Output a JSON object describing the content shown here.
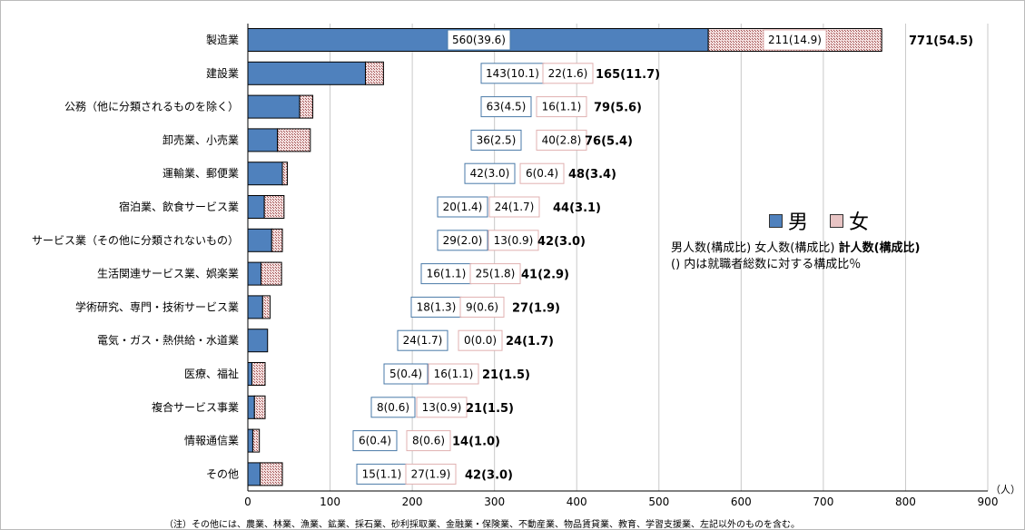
{
  "chart_data": {
    "type": "bar",
    "orientation": "horizontal",
    "stacked": true,
    "categories": [
      "製造業",
      "建設業",
      "公務（他に分類されるものを除く）",
      "卸売業、小売業",
      "運輸業、郵便業",
      "宿泊業、飲食サービス業",
      "サービス業（その他に分類されないもの）",
      "生活関連サービス業、娯楽業",
      "学術研究、専門・技術サービス業",
      "電気・ガス・熱供給・水道業",
      "医療、福祉",
      "複合サービス事業",
      "情報通信業",
      "その他"
    ],
    "series": [
      {
        "name": "男",
        "color": "#4f81bd",
        "values": [
          560,
          143,
          63,
          36,
          42,
          20,
          29,
          16,
          18,
          24,
          5,
          8,
          6,
          15
        ],
        "ratios": [
          "39.6",
          "10.1",
          "4.5",
          "2.5",
          "3.0",
          "1.4",
          "2.0",
          "1.1",
          "1.3",
          "1.7",
          "0.4",
          "0.6",
          "0.4",
          "1.1"
        ]
      },
      {
        "name": "女",
        "color": "#d9a0a0",
        "values": [
          211,
          22,
          16,
          40,
          6,
          24,
          13,
          25,
          9,
          0,
          16,
          13,
          8,
          27
        ],
        "ratios": [
          "14.9",
          "1.6",
          "1.1",
          "2.8",
          "0.4",
          "1.7",
          "0.9",
          "1.8",
          "0.6",
          "0.0",
          "1.1",
          "0.9",
          "0.6",
          "1.9"
        ]
      }
    ],
    "totals": [
      771,
      165,
      79,
      76,
      48,
      44,
      42,
      41,
      27,
      24,
      21,
      21,
      14,
      42
    ],
    "total_ratios": [
      "54.5",
      "11.7",
      "5.6",
      "5.4",
      "3.4",
      "3.1",
      "3.0",
      "2.9",
      "1.9",
      "1.7",
      "1.5",
      "1.5",
      "1.0",
      "3.0"
    ],
    "xlim": [
      0,
      900
    ],
    "xticks": [
      0,
      100,
      200,
      300,
      400,
      500,
      600,
      700,
      800,
      900
    ],
    "xunit": "（人）",
    "grid": true,
    "legend_position": "right-middle",
    "legend_note_line1_normal": "男人数(構成比) 女人数(構成比) ",
    "legend_note_line1_bold": "計人数(構成比)",
    "legend_note_line2": "() 内は就職者総数に対する構成比％",
    "footnote": "（注）その他には、農業、林業、漁業、鉱業、採石業、砂利採取業、金融業・保険業、不動産業、物品賃貸業、教育、学習支援業、左記以外のものを含む。"
  }
}
